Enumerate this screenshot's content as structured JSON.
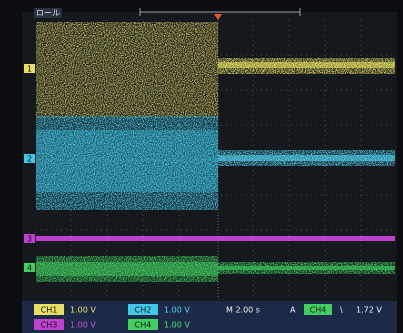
{
  "header": {
    "mode": "ロール"
  },
  "channel_markers": [
    "1",
    "2",
    "3",
    "4"
  ],
  "status": {
    "ch1": {
      "label": "CH1",
      "scale": "1.00 V"
    },
    "ch2": {
      "label": "CH2",
      "scale": "1.00 V"
    },
    "ch3": {
      "label": "CH3",
      "scale": "1.00 V"
    },
    "ch4": {
      "label": "CH4",
      "scale": "1.00 V"
    },
    "timebase": "M 2.00 s",
    "trigger": {
      "mode": "A",
      "source": "CH4",
      "slope": "\\",
      "level": "1.72 V"
    }
  }
}
